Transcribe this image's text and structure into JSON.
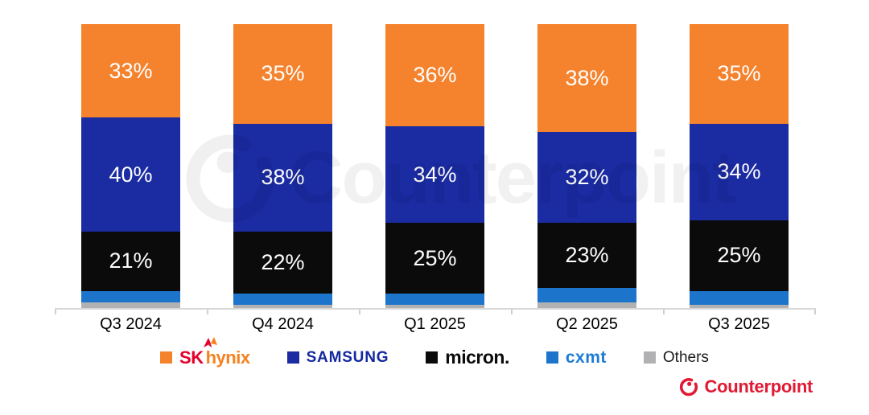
{
  "chart_data": {
    "type": "bar",
    "stacked": true,
    "categories": [
      "Q3 2024",
      "Q4 2024",
      "Q1 2025",
      "Q2 2025",
      "Q3 2025"
    ],
    "series": [
      {
        "id": "sk-hynix",
        "name": "SK hynix",
        "color": "#F5822C",
        "values": [
          33,
          35,
          36,
          38,
          35
        ],
        "show_labels": true
      },
      {
        "id": "samsung",
        "name": "Samsung",
        "color": "#1B2BA2",
        "values": [
          40,
          38,
          34,
          32,
          34
        ],
        "show_labels": true
      },
      {
        "id": "micron",
        "name": "Micron",
        "color": "#0B0B0B",
        "values": [
          21,
          22,
          25,
          23,
          25
        ],
        "show_labels": true
      },
      {
        "id": "cxmt",
        "name": "CXMT",
        "color": "#1C74CB",
        "values": [
          4,
          4,
          4,
          5,
          5
        ],
        "show_labels": false
      },
      {
        "id": "others",
        "name": "Others",
        "color": "#B1B1B3",
        "values": [
          2,
          1,
          1,
          2,
          1
        ],
        "show_labels": false
      }
    ],
    "value_suffix": "%",
    "ylim": [
      0,
      100
    ],
    "label_color": "#FFFFFF",
    "gridlines": false,
    "legend_position": "bottom"
  },
  "legend": {
    "items": [
      {
        "id": "sk-hynix",
        "swatch": "#F5822C",
        "label_sk": "SK",
        "label_hynix": "hynix"
      },
      {
        "id": "samsung",
        "swatch": "#1B2BA2",
        "label": "SAMSUNG"
      },
      {
        "id": "micron",
        "swatch": "#0B0B0B",
        "label": "micron."
      },
      {
        "id": "cxmt",
        "swatch": "#1C74CB",
        "label": "cxmt"
      },
      {
        "id": "others",
        "swatch": "#B1B1B3",
        "label": "Others"
      }
    ]
  },
  "watermark": {
    "text": "Counterpoint"
  },
  "footer": {
    "brand": "Counterpoint",
    "brand_color": "#E11934"
  }
}
